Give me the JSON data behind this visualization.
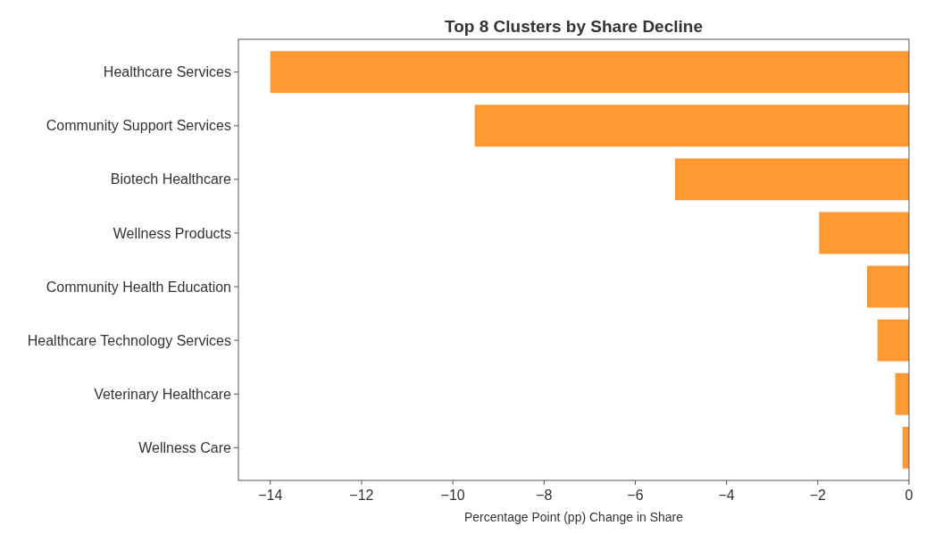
{
  "chart_data": {
    "type": "bar",
    "orientation": "horizontal",
    "title": "Top 8 Clusters by Share Decline",
    "xlabel": "Percentage Point (pp) Change in Share",
    "categories": [
      "Healthcare Services",
      "Community Support Services",
      "Biotech Healthcare",
      "Wellness Products",
      "Community Health Education",
      "Healthcare Technology Services",
      "Veterinary Healthcare",
      "Wellness Care"
    ],
    "values": [
      -14.0,
      -9.52,
      -5.13,
      -1.97,
      -0.92,
      -0.69,
      -0.3,
      -0.14
    ],
    "color": "#ff9933",
    "xlim": [
      -14.7,
      0
    ],
    "xticks": [
      {
        "value": -14,
        "label": "−14"
      },
      {
        "value": -12,
        "label": "−12"
      },
      {
        "value": -10,
        "label": "−10"
      },
      {
        "value": -8,
        "label": "−8"
      },
      {
        "value": -6,
        "label": "−6"
      },
      {
        "value": -4,
        "label": "−4"
      },
      {
        "value": -2,
        "label": "−2"
      },
      0
    ],
    "grid": false
  }
}
